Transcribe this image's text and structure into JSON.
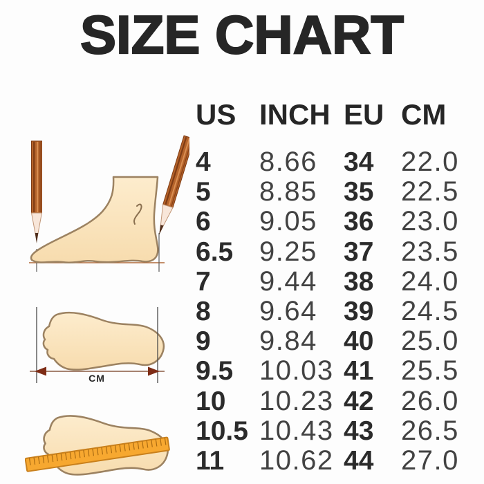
{
  "title": "SIZE CHART",
  "chart_data": {
    "type": "table",
    "title": "SIZE CHART",
    "columns": [
      "US",
      "INCH",
      "EU",
      "CM"
    ],
    "rows": [
      [
        "4",
        "8.66",
        "34",
        "22.0"
      ],
      [
        "5",
        "8.85",
        "35",
        "22.5"
      ],
      [
        "6",
        "9.05",
        "36",
        "23.0"
      ],
      [
        "6.5",
        "9.25",
        "37",
        "23.5"
      ],
      [
        "7",
        "9.44",
        "38",
        "24.0"
      ],
      [
        "8",
        "9.64",
        "39",
        "24.5"
      ],
      [
        "9",
        "9.84",
        "40",
        "25.0"
      ],
      [
        "9.5",
        "10.03",
        "41",
        "25.5"
      ],
      [
        "10",
        "10.23",
        "42",
        "26.0"
      ],
      [
        "10.5",
        "10.43",
        "43",
        "26.5"
      ],
      [
        "11",
        "10.62",
        "44",
        "27.0"
      ]
    ]
  },
  "illustrations": {
    "cm_label": "CM",
    "foot_measure_icon": "foot-side-view-with-two-pencils",
    "footprint_arrow_icon": "footprint-length-double-arrow",
    "footprint_ruler_icon": "footprint-with-ruler"
  },
  "colors": {
    "title_text": "#262626",
    "bold_cell_text": "#2b2b2b",
    "light_cell_text": "#424242",
    "foot_fill": "#fce9c8",
    "foot_outline": "#9c8261",
    "pencil_brown": "#b5632a",
    "ruler_orange": "#f7a830",
    "arrow_maroon": "#7e2c15",
    "background": "#fdfdfd"
  }
}
